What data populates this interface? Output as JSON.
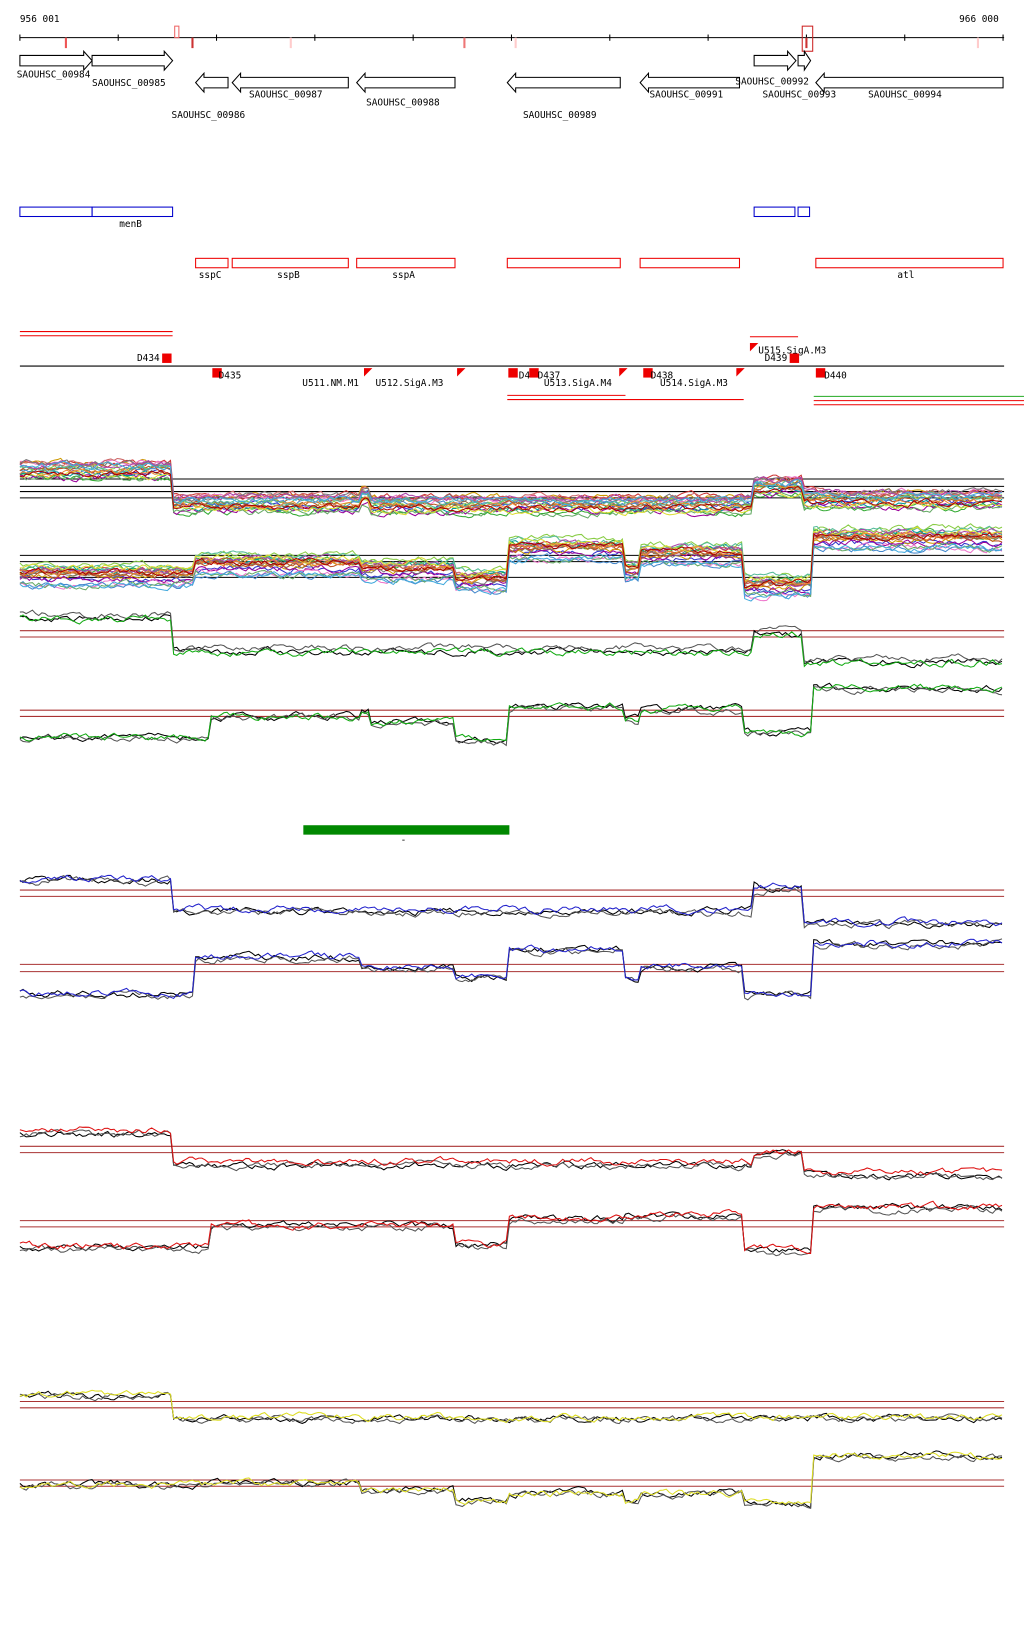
{
  "ruler": {
    "start": "956 001",
    "end": "966 000"
  },
  "genes": [
    "SAOUHSC_00984",
    "SAOUHSC_00985",
    "SAOUHSC_00986",
    "SAOUHSC_00987",
    "SAOUHSC_00988",
    "SAOUHSC_00989",
    "SAOUHSC_00991",
    "SAOUHSC_00992",
    "SAOUHSC_00993",
    "SAOUHSC_00994"
  ],
  "blue_annotations": [
    "menB"
  ],
  "red_annotations": [
    "sspC",
    "sspB",
    "sspA",
    "atl"
  ],
  "features": [
    "D434",
    "D435",
    "U511.NM.M1",
    "U512.SigA.M3",
    "D4",
    "D437",
    "U513.SigA.M4",
    "D438",
    "U514.SigA.M3",
    "U515.SigA.M3",
    "D439",
    "D440"
  ],
  "region_label": "-"
}
